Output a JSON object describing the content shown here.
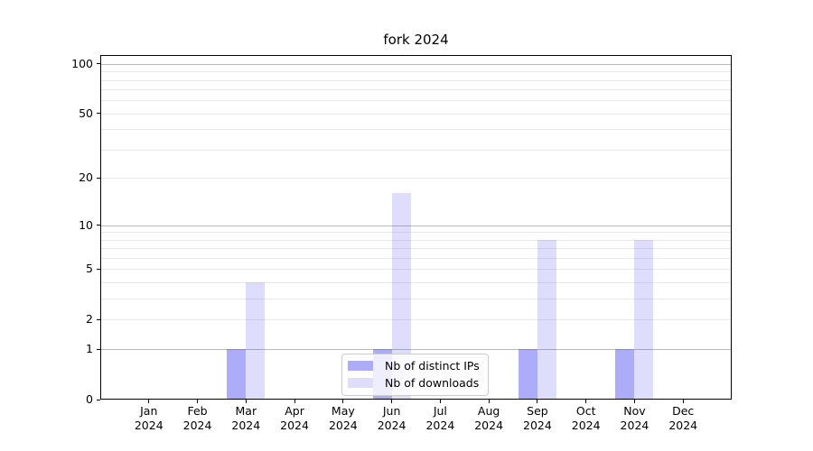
{
  "chart_data": {
    "type": "bar",
    "title": "fork 2024",
    "categories": [
      "Jan",
      "Feb",
      "Mar",
      "Apr",
      "May",
      "Jun",
      "Jul",
      "Aug",
      "Sep",
      "Oct",
      "Nov",
      "Dec"
    ],
    "category_year": "2024",
    "series": [
      {
        "name": "Nb of distinct IPs",
        "color": "rgba(70,70,240,0.45)",
        "values": [
          0,
          0,
          1,
          0,
          0,
          1,
          0,
          0,
          1,
          0,
          1,
          0
        ]
      },
      {
        "name": "Nb of downloads",
        "color": "rgba(70,70,240,0.18)",
        "values": [
          0,
          0,
          4,
          0,
          0,
          16,
          0,
          0,
          8,
          0,
          8,
          0
        ]
      }
    ],
    "xlabel": "",
    "ylabel": "",
    "yscale": "log1p",
    "ylim": [
      0,
      113
    ],
    "yticks": [
      0,
      1,
      2,
      5,
      10,
      20,
      50,
      100
    ],
    "minor_yticks": [
      3,
      4,
      6,
      7,
      8,
      9,
      30,
      40,
      60,
      70,
      80,
      90
    ],
    "grid": true,
    "legend_position": "lower center"
  },
  "colors": {
    "background": "#ffffff",
    "spine": "#000000",
    "grid_major": "#b9b9b9",
    "grid_minor": "#e9e9e9",
    "legend_border": "#cccccc"
  }
}
